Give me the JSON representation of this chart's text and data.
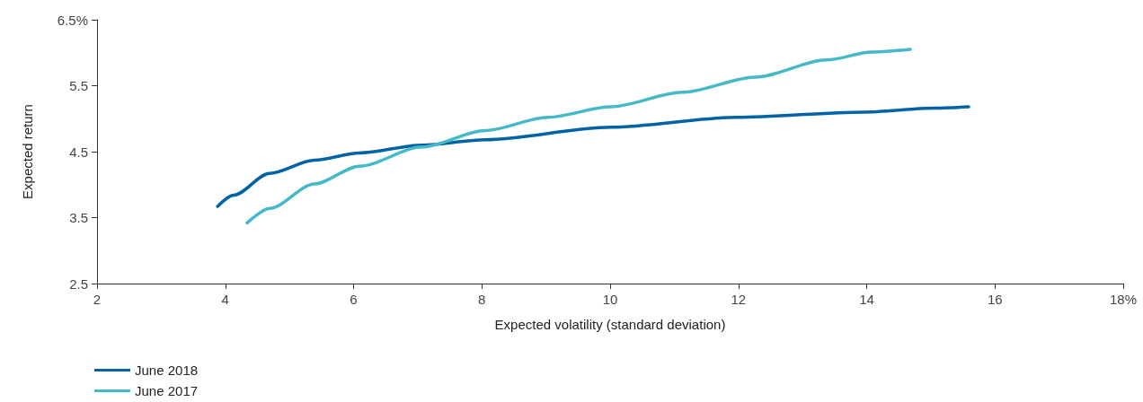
{
  "chart_data": {
    "type": "line",
    "xlabel": "Expected volatility (standard deviation)",
    "ylabel": "Expected return",
    "xlim": [
      2,
      18
    ],
    "xticks": [
      2,
      4,
      6,
      8,
      10,
      12,
      14,
      16,
      {
        "value": 18,
        "label": "18%"
      }
    ],
    "ylim": [
      2.5,
      6.5
    ],
    "yticks": [
      2.5,
      3.5,
      4.5,
      5.5,
      {
        "value": 6.5,
        "label": "6.5%"
      }
    ],
    "grid": false,
    "legend": "bottom left",
    "marker": "none",
    "line_style": "solid",
    "series": [
      {
        "name": "June 2018",
        "color": "#0063a6",
        "x": [
          3.88,
          4.13,
          4.69,
          5.39,
          6.09,
          7.07,
          8.05,
          10.01,
          11.98,
          13.94,
          15.06,
          15.59
        ],
        "values": [
          3.67,
          3.84,
          4.17,
          4.37,
          4.48,
          4.6,
          4.68,
          4.87,
          5.02,
          5.1,
          5.16,
          5.18
        ]
      },
      {
        "name": "June 2017",
        "color": "#45b9c8",
        "x": [
          4.34,
          4.69,
          5.39,
          6.09,
          7.07,
          8.05,
          9.03,
          10.01,
          11.13,
          12.26,
          13.38,
          14.08,
          14.68
        ],
        "values": [
          3.42,
          3.64,
          4.01,
          4.28,
          4.57,
          4.82,
          5.02,
          5.18,
          5.4,
          5.63,
          5.89,
          6.01,
          6.05
        ]
      }
    ]
  }
}
